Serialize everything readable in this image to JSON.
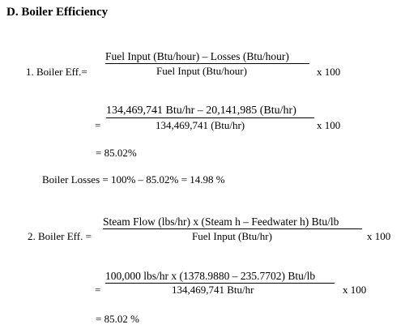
{
  "heading": "D. Boiler Efficiency",
  "eq1": {
    "label": "1. Boiler Eff.=",
    "numerator": "Fuel Input (Btu/hour) – Losses (Btu/hour)",
    "denominator": "Fuel Input (Btu/hour)",
    "multiplier": "x 100"
  },
  "eq1_sub": {
    "eq_sign": "=",
    "numerator": "134,469,741 Btu/hr – 20,141,985 (Btu/hr)",
    "denominator": "134,469,741 (Btu/hr)",
    "multiplier": "x 100"
  },
  "eq1_result": "= 85.02%",
  "losses": "Boiler Losses = 100% – 85.02%  = 14.98 %",
  "eq2": {
    "label": "2. Boiler Eff. =",
    "numerator": "Steam Flow (lbs/hr) x (Steam h – Feedwater h) Btu/lb",
    "denominator": "Fuel Input (Btu/hr)",
    "multiplier": "x 100"
  },
  "eq2_sub": {
    "eq_sign": "=",
    "numerator": "100,000 lbs/hr x (1378.9880 – 235.7702) Btu/lb",
    "denominator": "134,469,741 Btu/hr",
    "multiplier": "x 100"
  },
  "eq2_result": "= 85.02 %"
}
